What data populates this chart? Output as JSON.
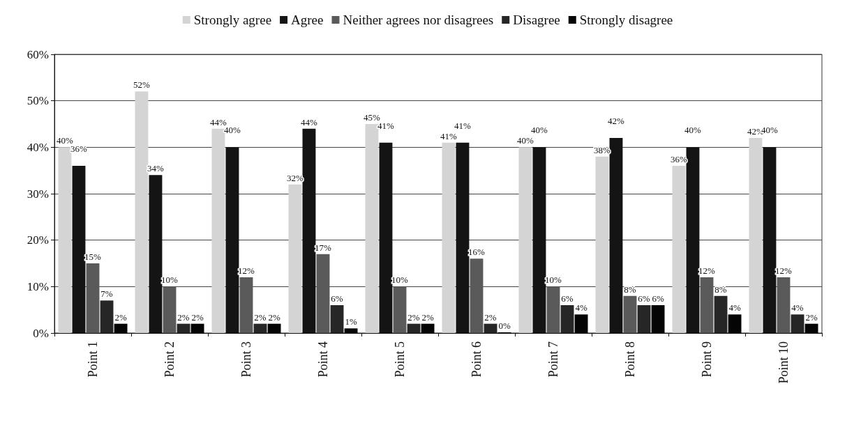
{
  "chart_data": {
    "type": "bar",
    "categories": [
      "Point 1",
      "Point 2",
      "Point 3",
      "Point 4",
      "Point 5",
      "Point 6",
      "Point 7",
      "Point 8",
      "Point 9",
      "Point 10"
    ],
    "series": [
      {
        "name": "Strongly agree",
        "color": "#d4d4d4",
        "values": [
          40,
          52,
          44,
          32,
          45,
          41,
          40,
          38,
          36,
          42
        ],
        "value_labels": [
          "40%",
          "52%",
          "44%",
          "32%",
          "45%",
          "41%",
          "40%",
          "38%",
          "36%",
          "42%"
        ]
      },
      {
        "name": "Agree",
        "color": "#141414",
        "values": [
          36,
          34,
          40,
          44,
          41,
          41,
          40,
          42,
          40,
          40
        ],
        "value_labels": [
          "36%",
          "34%",
          "40%",
          "44%",
          "41%",
          "41%",
          "40%",
          "42%",
          "40%",
          "40%"
        ]
      },
      {
        "name": "Neither agrees nor disagrees",
        "color": "#5a5a5a",
        "values": [
          15,
          10,
          12,
          17,
          10,
          16,
          10,
          8,
          12,
          12
        ],
        "value_labels": [
          "15%",
          "10%",
          "12%",
          "17%",
          "10%",
          "16%",
          "10%",
          "8%",
          "12%",
          "12%"
        ]
      },
      {
        "name": "Disagree",
        "color": "#262626",
        "values": [
          7,
          2,
          2,
          6,
          2,
          2,
          6,
          6,
          8,
          4
        ],
        "value_labels": [
          "7%",
          "2%",
          "2%",
          "6%",
          "2%",
          "2%",
          "6%",
          "6%",
          "8%",
          "4%"
        ]
      },
      {
        "name": "Strongly disagree",
        "color": "#050505",
        "values": [
          2,
          2,
          2,
          1,
          2,
          0,
          4,
          6,
          4,
          2
        ],
        "value_labels": [
          "2%",
          "2%",
          "2%",
          "1%",
          "2%",
          "0%",
          "4%",
          "6%",
          "4%",
          "2%"
        ]
      }
    ],
    "ylim": [
      0,
      60
    ],
    "yticks": [
      {
        "value": 0,
        "label": "0%"
      },
      {
        "value": 10,
        "label": "10%"
      },
      {
        "value": 20,
        "label": "20%"
      },
      {
        "value": 30,
        "label": "30%"
      },
      {
        "value": 40,
        "label": "40%"
      },
      {
        "value": 50,
        "label": "50%"
      },
      {
        "value": 60,
        "label": "60%"
      }
    ],
    "grid": "y",
    "legend": "top"
  }
}
